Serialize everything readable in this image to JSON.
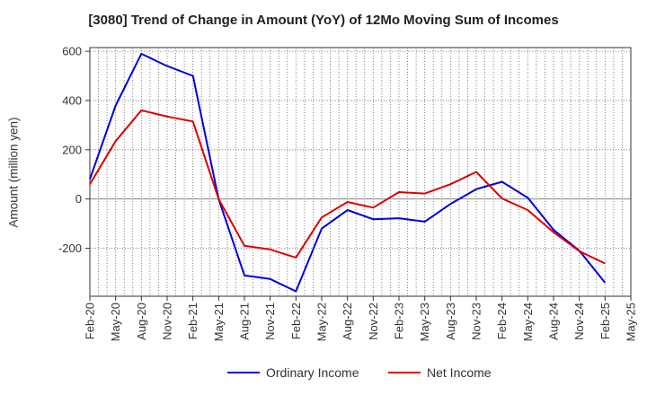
{
  "chart_data": {
    "type": "line",
    "title": "[3080]  Trend of Change in Amount (YoY) of 12Mo Moving Sum of Incomes",
    "xlabel": "",
    "ylabel": "Amount (million yen)",
    "x_ticks": [
      "Feb-20",
      "May-20",
      "Aug-20",
      "Nov-20",
      "Feb-21",
      "May-21",
      "Aug-21",
      "Nov-21",
      "Feb-22",
      "May-22",
      "Aug-22",
      "Nov-22",
      "Feb-23",
      "May-23",
      "Aug-23",
      "Nov-23",
      "Feb-24",
      "May-24",
      "Aug-24",
      "Nov-24",
      "Feb-25",
      "May-25"
    ],
    "x": [
      "Feb-20",
      "May-20",
      "Aug-20",
      "Nov-20",
      "Feb-21",
      "May-21",
      "Aug-21",
      "Nov-21",
      "Feb-22",
      "May-22",
      "Aug-22",
      "Nov-22",
      "Feb-23",
      "May-23",
      "Aug-23",
      "Nov-23",
      "Feb-24",
      "May-24",
      "Aug-24",
      "Nov-24",
      "Feb-25"
    ],
    "y_ticks": [
      600,
      400,
      200,
      0,
      -200
    ],
    "ylim": [
      -395,
      615
    ],
    "grid": true,
    "legend": "bottom",
    "series": [
      {
        "name": "Ordinary Income",
        "color": "#0000dd",
        "values": [
          80,
          380,
          590,
          540,
          500,
          0,
          -310,
          -325,
          -375,
          -120,
          -45,
          -82,
          -78,
          -92,
          -20,
          40,
          70,
          5,
          -125,
          -210,
          -340
        ]
      },
      {
        "name": "Net Income",
        "color": "#dd0000",
        "values": [
          60,
          235,
          360,
          335,
          315,
          0,
          -190,
          -205,
          -238,
          -75,
          -12,
          -35,
          28,
          22,
          60,
          110,
          2,
          -45,
          -135,
          -212,
          -262
        ]
      }
    ]
  }
}
